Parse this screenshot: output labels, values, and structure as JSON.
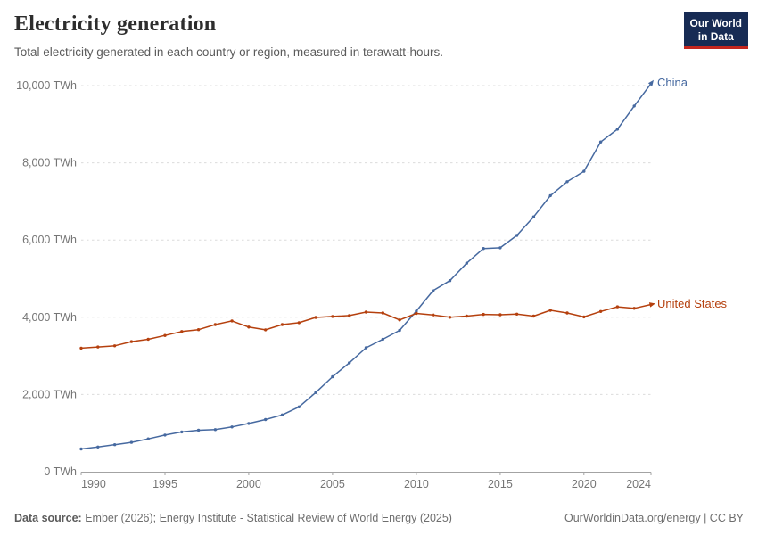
{
  "header": {
    "title": "Electricity generation",
    "subtitle": "Total electricity generated in each country or region, measured in terawatt-hours.",
    "logo": {
      "line1": "Our World",
      "line2": "in Data"
    }
  },
  "chart_data": {
    "type": "line",
    "title": "Electricity generation",
    "unit": "TWh",
    "xlabel": "",
    "ylabel": "TWh",
    "xlim": [
      1990,
      2024
    ],
    "ylim": [
      0,
      10000
    ],
    "grid": "horizontal-dashed",
    "legend": "end-of-line-labels",
    "x": [
      1990,
      1991,
      1992,
      1993,
      1994,
      1995,
      1996,
      1997,
      1998,
      1999,
      2000,
      2001,
      2002,
      2003,
      2004,
      2005,
      2006,
      2007,
      2008,
      2009,
      2010,
      2011,
      2012,
      2013,
      2014,
      2015,
      2016,
      2017,
      2018,
      2019,
      2020,
      2021,
      2022,
      2023,
      2024
    ],
    "series": [
      {
        "name": "China",
        "color": "#4669a0",
        "values": [
          590,
          640,
          700,
          760,
          850,
          950,
          1030,
          1075,
          1090,
          1160,
          1250,
          1350,
          1470,
          1680,
          2050,
          2460,
          2820,
          3210,
          3430,
          3660,
          4160,
          4690,
          4950,
          5400,
          5780,
          5800,
          6120,
          6600,
          7150,
          7510,
          7780,
          8540,
          8870,
          9470,
          10050
        ]
      },
      {
        "name": "United States",
        "color": "#b5400e",
        "values": [
          3200,
          3230,
          3260,
          3370,
          3430,
          3530,
          3630,
          3680,
          3810,
          3905,
          3745,
          3675,
          3810,
          3860,
          3995,
          4020,
          4045,
          4135,
          4110,
          3930,
          4100,
          4060,
          4000,
          4030,
          4075,
          4065,
          4080,
          4030,
          4180,
          4110,
          4010,
          4150,
          4270,
          4230,
          4330
        ]
      }
    ],
    "yticks": [
      {
        "value": 0,
        "label": "0 TWh"
      },
      {
        "value": 2000,
        "label": "2,000 TWh"
      },
      {
        "value": 4000,
        "label": "4,000 TWh"
      },
      {
        "value": 6000,
        "label": "6,000 TWh"
      },
      {
        "value": 8000,
        "label": "8,000 TWh"
      },
      {
        "value": 10000,
        "label": "10,000 TWh"
      }
    ],
    "xticks": [
      {
        "value": 1990,
        "label": "1990",
        "anchor": "start"
      },
      {
        "value": 1995,
        "label": "1995",
        "anchor": "middle"
      },
      {
        "value": 2000,
        "label": "2000",
        "anchor": "middle"
      },
      {
        "value": 2005,
        "label": "2005",
        "anchor": "middle"
      },
      {
        "value": 2010,
        "label": "2010",
        "anchor": "middle"
      },
      {
        "value": 2015,
        "label": "2015",
        "anchor": "middle"
      },
      {
        "value": 2020,
        "label": "2020",
        "anchor": "middle"
      },
      {
        "value": 2024,
        "label": "2024",
        "anchor": "end"
      }
    ]
  },
  "footer": {
    "source_label": "Data source:",
    "source_text": " Ember (2026); Energy Institute - Statistical Review of World Energy (2025)",
    "link_text": "OurWorldinData.org/energy | CC BY"
  },
  "colors": {
    "axis": "#a3a3a3",
    "grid": "#dcdcdc",
    "tick_label": "#757575",
    "title": "#2d2d2d",
    "subtitle": "#5b5b5b",
    "logo_bg": "#172b54",
    "logo_stripe": "#c4261e"
  }
}
